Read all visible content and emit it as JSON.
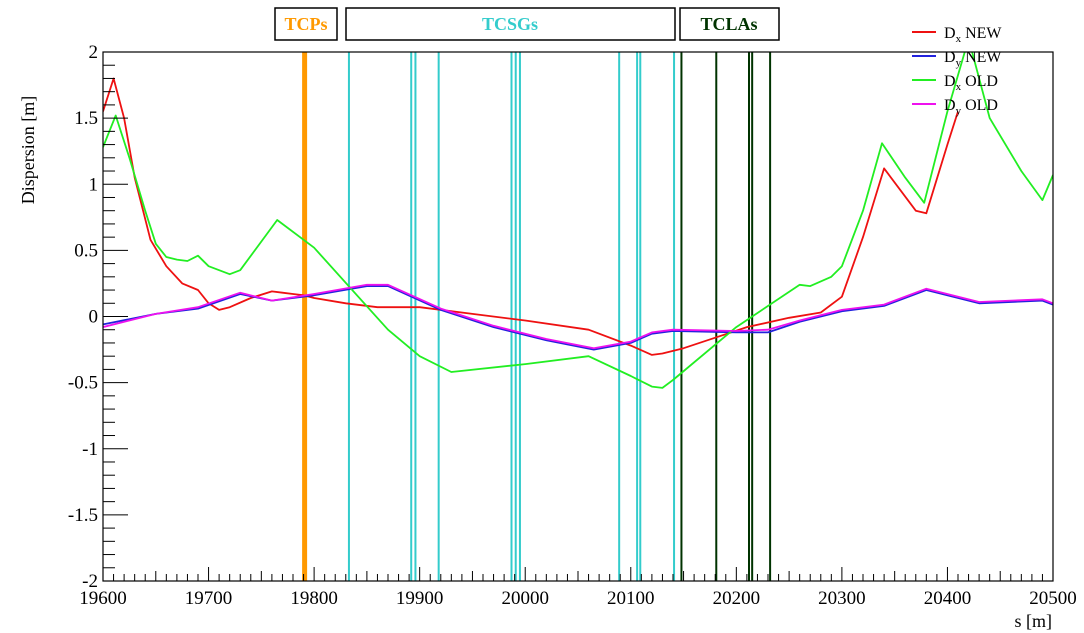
{
  "chart_data": {
    "type": "line",
    "title": "",
    "xlabel": "s [m]",
    "ylabel": "Dispersion [m]",
    "xlim": [
      19600,
      20500
    ],
    "ylim": [
      -2,
      2
    ],
    "x_ticks": [
      19600,
      19700,
      19800,
      19900,
      20000,
      20100,
      20200,
      20300,
      20400,
      20500
    ],
    "x_tick_labels": [
      "19600",
      "19700",
      "19800",
      "19900",
      "20000",
      "20100",
      "20200",
      "20300",
      "20400",
      "20500"
    ],
    "y_ticks": [
      -2,
      -1.5,
      -1,
      -0.5,
      0,
      0.5,
      1,
      1.5,
      2
    ],
    "y_tick_labels": [
      "-2",
      "-1.5",
      "-1",
      "-0.5",
      "0",
      "0.5",
      "1",
      "1.5",
      "2"
    ],
    "legend_placement": "top-right",
    "series": [
      {
        "name": "Dx NEW",
        "legend_base": "D",
        "legend_sub": "x",
        "legend_rest": " NEW",
        "color": "#ee1111",
        "x": [
          19600,
          19610,
          19620,
          19630,
          19645,
          19660,
          19675,
          19690,
          19700,
          19710,
          19720,
          19740,
          19760,
          19770,
          19780,
          19790,
          19800,
          19830,
          19860,
          19900,
          19950,
          20000,
          20060,
          20100,
          20120,
          20130,
          20150,
          20180,
          20210,
          20250,
          20280,
          20300,
          20320,
          20340,
          20370,
          20380,
          20400,
          20410
        ],
        "y": [
          1.55,
          1.8,
          1.5,
          1.05,
          0.58,
          0.38,
          0.25,
          0.2,
          0.1,
          0.05,
          0.07,
          0.14,
          0.19,
          0.18,
          0.17,
          0.16,
          0.14,
          0.1,
          0.07,
          0.07,
          0.02,
          -0.03,
          -0.1,
          -0.22,
          -0.29,
          -0.28,
          -0.24,
          -0.16,
          -0.08,
          -0.01,
          0.03,
          0.15,
          0.6,
          1.12,
          0.8,
          0.78,
          1.3,
          1.55
        ]
      },
      {
        "name": "Dy NEW",
        "legend_base": "D",
        "legend_sub": "y",
        "legend_rest": " NEW",
        "color": "#2222dd",
        "x": [
          19600,
          19650,
          19690,
          19730,
          19760,
          19800,
          19850,
          19870,
          19920,
          19970,
          20020,
          20065,
          20100,
          20120,
          20140,
          20200,
          20230,
          20260,
          20300,
          20340,
          20380,
          20430,
          20490,
          20500
        ],
        "y": [
          -0.06,
          0.02,
          0.06,
          0.17,
          0.12,
          0.16,
          0.23,
          0.23,
          0.05,
          -0.08,
          -0.18,
          -0.25,
          -0.2,
          -0.13,
          -0.11,
          -0.12,
          -0.12,
          -0.04,
          0.04,
          0.08,
          0.2,
          0.1,
          0.12,
          0.09
        ]
      },
      {
        "name": "Dx OLD",
        "legend_base": "D",
        "legend_sub": "x",
        "legend_rest": " OLD",
        "color": "#22ee22",
        "x": [
          19600,
          19612,
          19625,
          19640,
          19650,
          19660,
          19670,
          19680,
          19690,
          19700,
          19720,
          19730,
          19765,
          19800,
          19870,
          19900,
          19930,
          20000,
          20060,
          20100,
          20120,
          20130,
          20140,
          20200,
          20260,
          20270,
          20290,
          20300,
          20320,
          20338,
          20360,
          20378,
          20400,
          20420,
          20440,
          20470,
          20490,
          20500
        ],
        "y": [
          1.28,
          1.52,
          1.2,
          0.8,
          0.55,
          0.45,
          0.43,
          0.42,
          0.46,
          0.38,
          0.32,
          0.35,
          0.73,
          0.52,
          -0.1,
          -0.3,
          -0.42,
          -0.36,
          -0.3,
          -0.45,
          -0.53,
          -0.54,
          -0.48,
          -0.08,
          0.24,
          0.23,
          0.3,
          0.38,
          0.8,
          1.31,
          1.05,
          0.86,
          1.55,
          2.1,
          1.5,
          1.1,
          0.88,
          1.07
        ]
      },
      {
        "name": "Dy OLD",
        "legend_base": "D",
        "legend_sub": "y",
        "legend_rest": " OLD",
        "color": "#ee11ee",
        "x": [
          19600,
          19650,
          19690,
          19730,
          19760,
          19800,
          19850,
          19870,
          19920,
          19970,
          20020,
          20065,
          20100,
          20120,
          20140,
          20200,
          20230,
          20260,
          20300,
          20340,
          20380,
          20430,
          20490,
          20500
        ],
        "y": [
          -0.08,
          0.02,
          0.07,
          0.18,
          0.12,
          0.17,
          0.24,
          0.24,
          0.06,
          -0.07,
          -0.17,
          -0.24,
          -0.19,
          -0.12,
          -0.1,
          -0.11,
          -0.1,
          -0.03,
          0.05,
          0.09,
          0.21,
          0.11,
          0.13,
          0.1
        ]
      }
    ],
    "collimator_groups": [
      {
        "label": "TCPs",
        "color": "#ff9900",
        "label_color": "#ff9900",
        "stroke_width": 5,
        "positions": [
          19791
        ]
      },
      {
        "label": "TCSGs",
        "color": "#33cccc",
        "label_color": "#33cccc",
        "stroke_width": 2,
        "positions": [
          19833,
          19892,
          19896,
          19918,
          19987,
          19991,
          19995,
          20089,
          20106,
          20109,
          20141
        ]
      },
      {
        "label": "TCLAs",
        "color": "#003300",
        "label_color": "#003300",
        "stroke_width": 2,
        "positions": [
          20148,
          20181,
          20212,
          20215,
          20232
        ]
      }
    ]
  }
}
